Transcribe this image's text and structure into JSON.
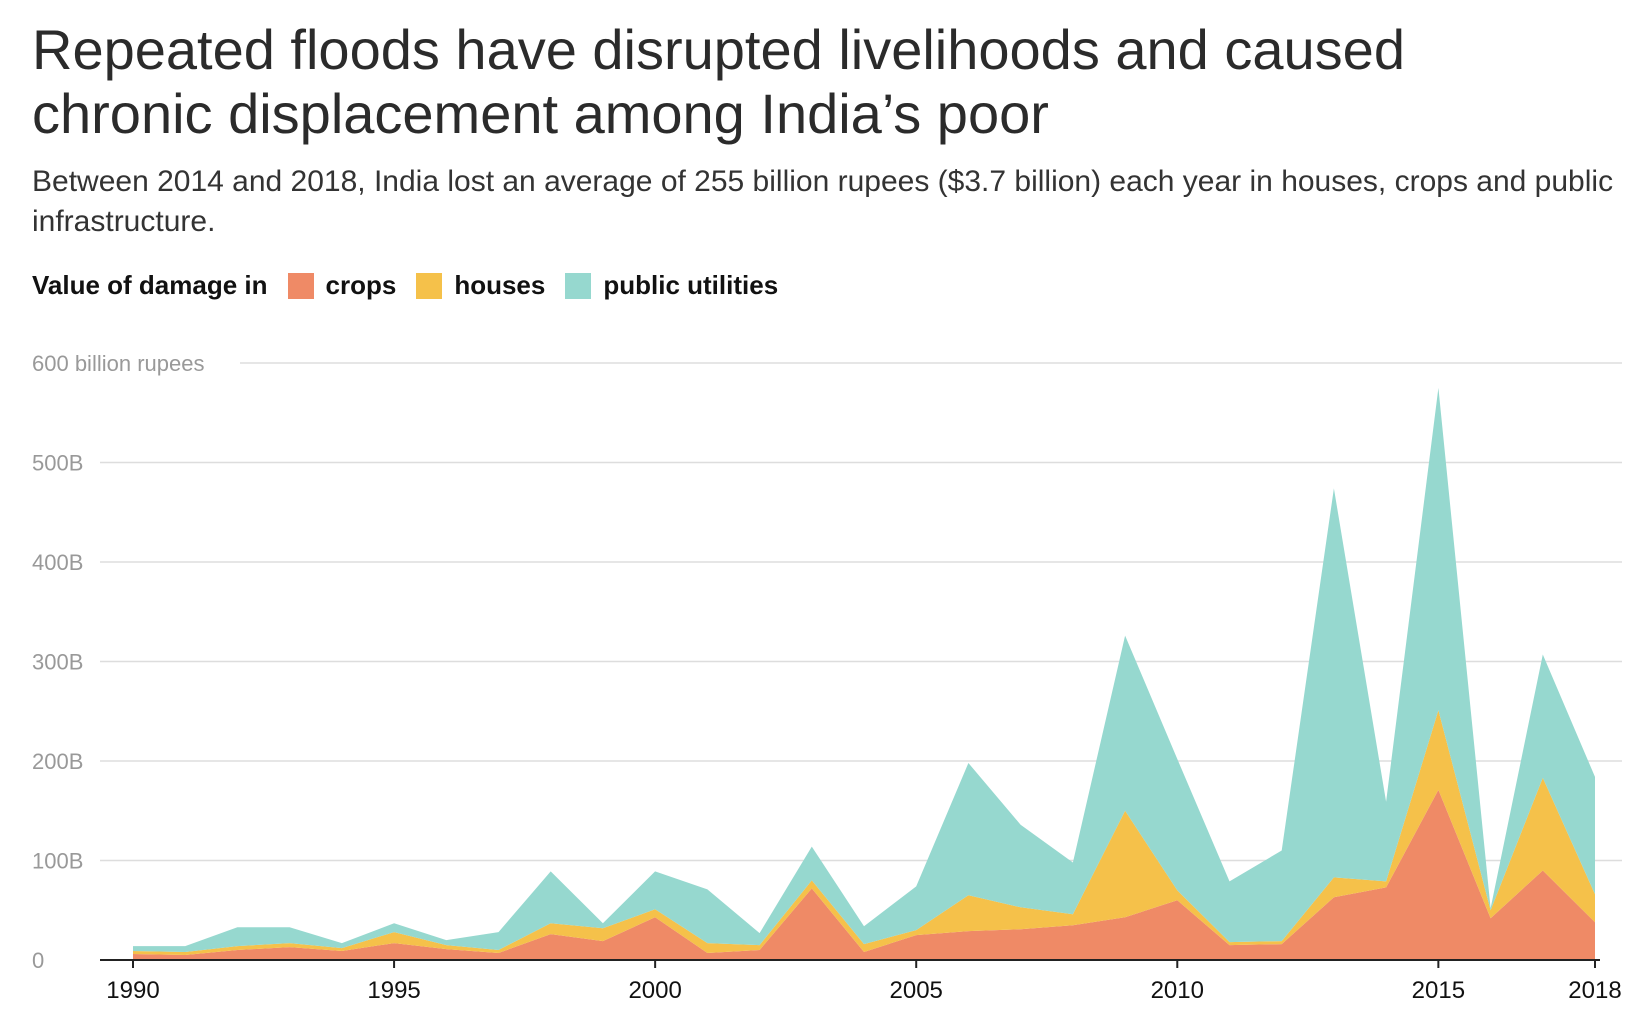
{
  "title": "Repeated floods have disrupted livelihoods and caused chronic displacement among India’s poor",
  "subtitle": "Between 2014 and 2018, India lost an average of 255 billion rupees ($3.7 billion) each year in houses, crops and public infrastructure.",
  "legend": {
    "title": "Value of damage in",
    "items": [
      {
        "label": "crops",
        "color": "#ef8a66"
      },
      {
        "label": "houses",
        "color": "#f5c14a"
      },
      {
        "label": "public utilities",
        "color": "#96d8cf"
      }
    ]
  },
  "chart_data": {
    "type": "area",
    "stacked": true,
    "x": [
      1990,
      1991,
      1992,
      1993,
      1994,
      1995,
      1996,
      1997,
      1998,
      1999,
      2000,
      2001,
      2002,
      2003,
      2004,
      2005,
      2006,
      2007,
      2008,
      2009,
      2010,
      2011,
      2012,
      2013,
      2014,
      2015,
      2016,
      2017,
      2018
    ],
    "series": [
      {
        "name": "crops",
        "color": "#ef8a66",
        "values": [
          6,
          5,
          10,
          13,
          9,
          17,
          11,
          7,
          26,
          19,
          43,
          7,
          10,
          72,
          8,
          25,
          29,
          31,
          35,
          43,
          60,
          15,
          16,
          63,
          73,
          171,
          42,
          90,
          38
        ]
      },
      {
        "name": "houses",
        "color": "#f5c14a",
        "values": [
          3,
          3,
          4,
          4,
          3,
          11,
          4,
          3,
          11,
          13,
          8,
          10,
          5,
          8,
          8,
          5,
          36,
          22,
          11,
          107,
          10,
          3,
          3,
          20,
          6,
          80,
          8,
          93,
          28
        ]
      },
      {
        "name": "public utilities",
        "color": "#96d8cf",
        "values": [
          5,
          6,
          19,
          16,
          5,
          9,
          5,
          18,
          52,
          5,
          38,
          54,
          12,
          34,
          18,
          44,
          133,
          83,
          52,
          176,
          132,
          61,
          91,
          391,
          80,
          324,
          2,
          124,
          118
        ]
      }
    ],
    "yticks": [
      {
        "value": 0,
        "label": "0"
      },
      {
        "value": 100,
        "label": "100B"
      },
      {
        "value": 200,
        "label": "200B"
      },
      {
        "value": 300,
        "label": "300B"
      },
      {
        "value": 400,
        "label": "400B"
      },
      {
        "value": 500,
        "label": "500B"
      },
      {
        "value": 600,
        "label": "600 billion rupees"
      }
    ],
    "xticks": [
      1990,
      1995,
      2000,
      2005,
      2010,
      2015,
      2018
    ],
    "xlim": [
      1990,
      2018
    ],
    "ylim": [
      0,
      600
    ],
    "grid": true,
    "legend_position": "top-left"
  }
}
